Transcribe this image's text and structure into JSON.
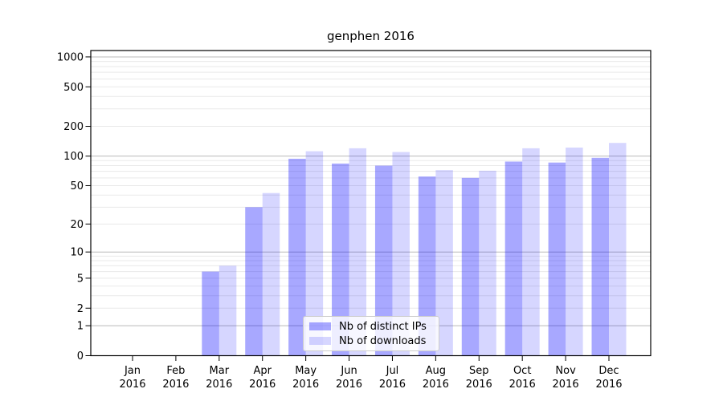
{
  "chart_data": {
    "type": "bar",
    "title": "genphen 2016",
    "categories": [
      "Jan",
      "Feb",
      "Mar",
      "Apr",
      "May",
      "Jun",
      "Jul",
      "Aug",
      "Sep",
      "Oct",
      "Nov",
      "Dec"
    ],
    "x_tick_year": "2016",
    "series": [
      {
        "name": "Nb of distinct IPs",
        "color": "#0000ff",
        "alpha": 0.34,
        "values": [
          0,
          0,
          6,
          30,
          94,
          84,
          80,
          62,
          60,
          88,
          86,
          96
        ]
      },
      {
        "name": "Nb of downloads",
        "color": "#0000ff",
        "alpha": 0.16,
        "values": [
          0,
          0,
          7,
          42,
          112,
          120,
          110,
          72,
          71,
          120,
          122,
          136
        ]
      }
    ],
    "xlabel": "",
    "ylabel": "",
    "y_scale": "log1p",
    "y_ticks": [
      0,
      1,
      2,
      5,
      10,
      20,
      50,
      100,
      200,
      500,
      1000
    ],
    "ylim": [
      0,
      1160
    ],
    "grid": "horizontal",
    "legend_position": "lower center"
  },
  "colors": {
    "bar_tint_dark": "#a8a8f5",
    "bar_tint_light": "#dbdbf8",
    "major_grid": "#b9b9b9",
    "minor_grid": "#e9e9e9",
    "axis": "#000000",
    "text": "#000000",
    "legend_border": "#cccccc",
    "background": "#ffffff"
  }
}
